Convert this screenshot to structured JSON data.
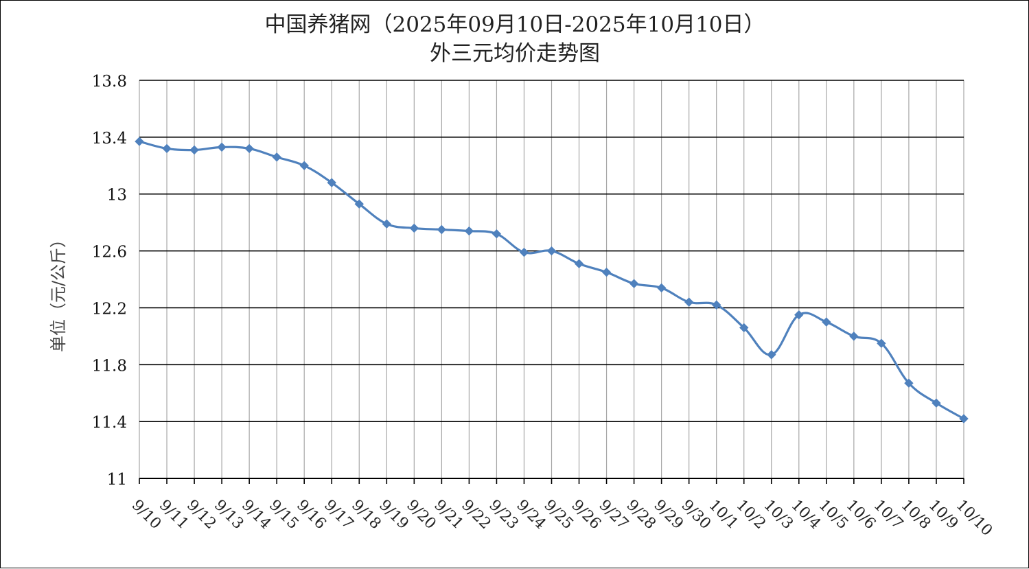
{
  "chart_data": {
    "type": "line",
    "title_line1": "中国养猪网（2025年09月10日-2025年10月10日）",
    "title_line2": "外三元均价走势图",
    "xlabel": "",
    "ylabel": "单位（元/公斤）",
    "ylim": [
      11,
      13.8
    ],
    "y_ticks": [
      "13.8",
      "13.4",
      "13",
      "12.6",
      "12.2",
      "11.8",
      "11.4",
      "11"
    ],
    "y_tick_values": [
      13.8,
      13.4,
      13.0,
      12.6,
      12.2,
      11.8,
      11.4,
      11.0
    ],
    "grid": true,
    "categories": [
      "9/10",
      "9/11",
      "9/12",
      "9/13",
      "9/14",
      "9/15",
      "9/16",
      "9/17",
      "9/18",
      "9/19",
      "9/20",
      "9/21",
      "9/22",
      "9/23",
      "9/24",
      "9/25",
      "9/26",
      "9/27",
      "9/28",
      "9/29",
      "9/30",
      "10/1",
      "10/2",
      "10/3",
      "10/4",
      "10/5",
      "10/6",
      "10/7",
      "10/8",
      "10/9",
      "10/10"
    ],
    "series": [
      {
        "color": "#4f81bd",
        "values": [
          13.37,
          13.32,
          13.31,
          13.33,
          13.32,
          13.26,
          13.2,
          13.08,
          12.93,
          12.79,
          12.76,
          12.75,
          12.74,
          12.72,
          12.59,
          12.6,
          12.51,
          12.45,
          12.37,
          12.34,
          12.24,
          12.22,
          12.06,
          11.87,
          12.15,
          12.1,
          12.0,
          11.95,
          11.67,
          11.53,
          11.42
        ]
      }
    ]
  }
}
